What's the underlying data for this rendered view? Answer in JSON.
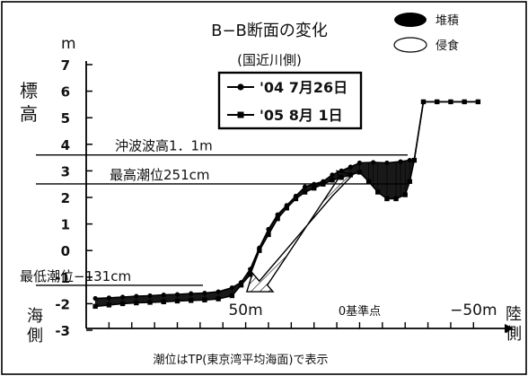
{
  "chart_data": {
    "type": "line",
    "title": "B−B断面の変化",
    "subtitle": "(国近川側)",
    "y_unit": "m",
    "ylabel": "標高",
    "ylabel_bottom": "海側",
    "xlabel_right": "陸側",
    "ylim": [
      -3,
      7
    ],
    "yticks": [
      "-3",
      "-2",
      "-1",
      "0",
      "1",
      "2",
      "3",
      "4",
      "5",
      "6",
      "7"
    ],
    "x_direction": "reversed",
    "xlim": [
      120,
      -55
    ],
    "xtick_labels": [
      {
        "x": 50,
        "label": "50m"
      },
      {
        "x": 0,
        "label": "0基準点"
      },
      {
        "x": -50,
        "label": "−50m"
      }
    ],
    "legend_fill": [
      {
        "name": "堆積",
        "fill": "#000000"
      },
      {
        "name": "侵食",
        "fill": "#ffffff"
      }
    ],
    "reference_lines": [
      {
        "label": "沖波波高1．1m",
        "y": 3.6
      },
      {
        "label": "最高潮位251cm",
        "y": 2.51
      },
      {
        "label": "最低潮位−131cm",
        "y": -1.31
      }
    ],
    "series": [
      {
        "name": "'04 7月26日",
        "marker": "circle",
        "points": [
          [
            116,
            -1.8
          ],
          [
            110,
            -1.78
          ],
          [
            104,
            -1.75
          ],
          [
            98,
            -1.72
          ],
          [
            92,
            -1.7
          ],
          [
            86,
            -1.67
          ],
          [
            80,
            -1.65
          ],
          [
            74,
            -1.62
          ],
          [
            68,
            -1.6
          ],
          [
            62,
            -1.55
          ],
          [
            56,
            -1.4
          ],
          [
            52,
            -1.2
          ],
          [
            48,
            -0.7
          ],
          [
            44,
            0.1
          ],
          [
            40,
            0.8
          ],
          [
            36,
            1.35
          ],
          [
            32,
            1.7
          ],
          [
            28,
            2.05
          ],
          [
            24,
            2.4
          ],
          [
            20,
            2.5
          ],
          [
            16,
            2.6
          ],
          [
            12,
            2.85
          ],
          [
            8,
            3.0
          ],
          [
            4,
            3.15
          ],
          [
            0,
            3.3
          ],
          [
            -6,
            3.32
          ],
          [
            -12,
            3.3
          ],
          [
            -18,
            3.35
          ],
          [
            -22,
            3.4
          ],
          [
            -24,
            3.4
          ],
          [
            -28,
            5.6
          ],
          [
            -34,
            5.6
          ],
          [
            -40,
            5.6
          ],
          [
            -46,
            5.6
          ],
          [
            -52,
            5.6
          ]
        ]
      },
      {
        "name": "'05 8月 1日",
        "marker": "square",
        "points": [
          [
            116,
            -2.1
          ],
          [
            110,
            -2.05
          ],
          [
            104,
            -2.0
          ],
          [
            98,
            -1.97
          ],
          [
            92,
            -1.95
          ],
          [
            86,
            -1.93
          ],
          [
            80,
            -1.9
          ],
          [
            74,
            -1.88
          ],
          [
            68,
            -1.86
          ],
          [
            62,
            -1.82
          ],
          [
            56,
            -1.7
          ],
          [
            52,
            -1.3
          ],
          [
            48,
            -0.9
          ],
          [
            44,
            0.0
          ],
          [
            40,
            0.6
          ],
          [
            36,
            1.2
          ],
          [
            32,
            1.6
          ],
          [
            28,
            1.95
          ],
          [
            24,
            2.2
          ],
          [
            20,
            2.35
          ],
          [
            16,
            2.5
          ],
          [
            12,
            2.65
          ],
          [
            8,
            2.75
          ],
          [
            4,
            2.85
          ],
          [
            0,
            2.95
          ],
          [
            -4,
            2.6
          ],
          [
            -8,
            2.2
          ],
          [
            -12,
            1.95
          ],
          [
            -16,
            1.95
          ],
          [
            -20,
            2.1
          ],
          [
            -22,
            2.6
          ],
          [
            -24,
            3.4
          ],
          [
            -28,
            5.6
          ],
          [
            -34,
            5.6
          ],
          [
            -40,
            5.6
          ],
          [
            -46,
            5.6
          ],
          [
            -52,
            5.6
          ]
        ]
      }
    ],
    "note": "潮位はTP(東京湾平均海面)で表示"
  }
}
